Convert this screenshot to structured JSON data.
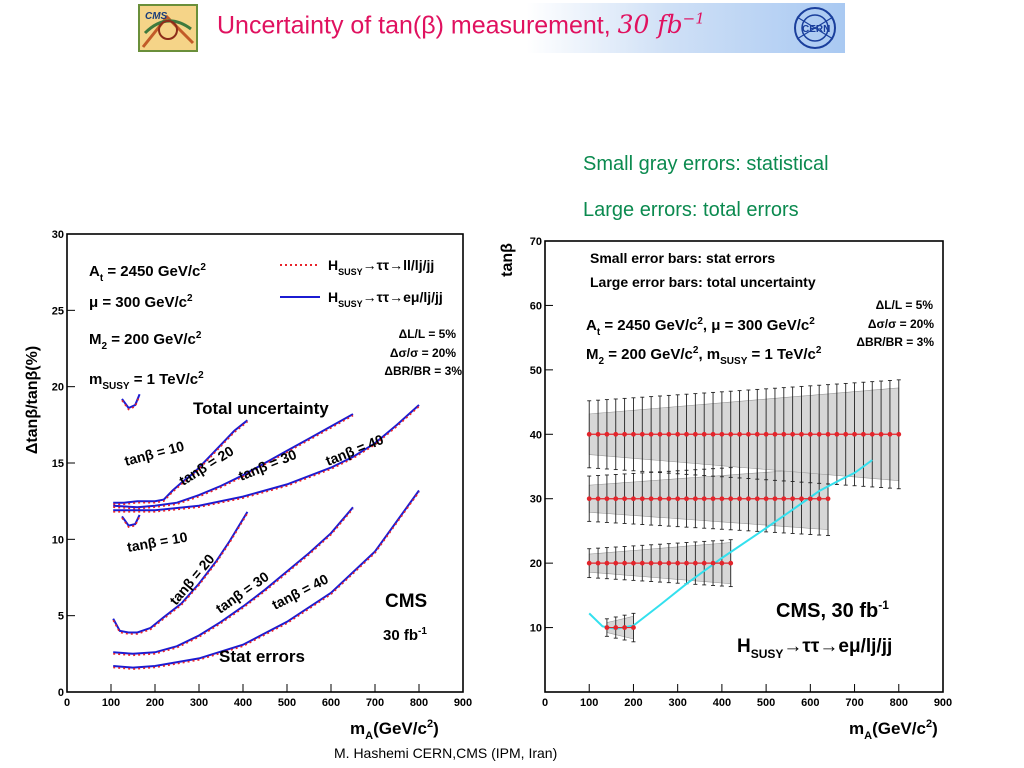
{
  "header": {
    "title_text": "Uncertainty of tan(β) measurement, ",
    "title_lumi": "30 fb",
    "title_lumi_exp": "−1",
    "left_logo_text": "CMS",
    "right_logo_text": "CERN"
  },
  "notes": {
    "line1": "Small gray errors: statistical",
    "line2": "Large errors: total errors"
  },
  "footer": "M. Hashemi CERN,CMS (IPM, Iran)",
  "colors": {
    "title": "#e0115f",
    "notes": "#0b8a4f",
    "curve_red": "#e8232b",
    "curve_blue": "#1b1bd2",
    "curve_cyan": "#33e0ee",
    "points": "#e3242b",
    "band": "#d7d7d7"
  },
  "chart_data": [
    {
      "type": "line",
      "xlabel_main": "m",
      "xlabel_sub": "A",
      "xlabel_unit": "(GeV/c",
      "xlabel_sup": "2",
      "xlabel_end": ")",
      "ylabel": "Δtanβ/tanβ(%)",
      "xlim": [
        0,
        900
      ],
      "ylim": [
        0,
        30
      ],
      "xticks": [
        0,
        100,
        200,
        300,
        400,
        500,
        600,
        700,
        800,
        900
      ],
      "yticks": [
        0,
        5,
        10,
        15,
        20,
        25,
        30
      ],
      "params": [
        "A_t = 2450 GeV/c²",
        "μ = 300 GeV/c²",
        "M₂ = 200 GeV/c²",
        "m_SUSY = 1 TeV/c²"
      ],
      "uncertainties": [
        "ΔL/L = 5%",
        "Δσ/σ = 20%",
        "ΔBR/BR = 3%"
      ],
      "legend": [
        {
          "label": "H_SUSY→ττ→ll/lj/jj",
          "style": "dotted",
          "color": "red"
        },
        {
          "label": "H_SUSY→ττ→eμ/lj/jj",
          "style": "solid",
          "color": "blue"
        }
      ],
      "group_labels": {
        "total": "Total uncertainty",
        "stat": "Stat errors"
      },
      "experiment": "CMS",
      "lumi": "30 fb",
      "lumi_exp": "-1",
      "series": [
        {
          "group": "total",
          "label": "tanβ = 10",
          "x": [
            125,
            140,
            155,
            165
          ],
          "y": [
            19.2,
            18.6,
            18.8,
            19.5
          ]
        },
        {
          "group": "total",
          "label": "tanβ = 20",
          "x": [
            105,
            130,
            160,
            200,
            220,
            240,
            260,
            290,
            320,
            350,
            380,
            410
          ],
          "y": [
            12.4,
            12.4,
            12.5,
            12.5,
            12.6,
            13.2,
            13.7,
            14.4,
            15.3,
            16.2,
            17.1,
            17.8
          ]
        },
        {
          "group": "total",
          "label": "tanβ = 30",
          "x": [
            105,
            160,
            200,
            250,
            300,
            350,
            400,
            450,
            500,
            550,
            600,
            650
          ],
          "y": [
            12.2,
            12.1,
            12.2,
            12.4,
            12.9,
            13.5,
            14.2,
            15,
            15.8,
            16.6,
            17.4,
            18.2
          ]
        },
        {
          "group": "total",
          "label": "tanβ = 40",
          "x": [
            105,
            200,
            300,
            400,
            500,
            600,
            650,
            700,
            750,
            800
          ],
          "y": [
            11.9,
            11.9,
            12.2,
            12.8,
            13.6,
            14.7,
            15.4,
            16.3,
            17.5,
            18.8
          ]
        },
        {
          "group": "stat",
          "label": "tanβ = 10",
          "x": [
            125,
            140,
            155,
            165
          ],
          "y": [
            11.5,
            10.9,
            11,
            11.6
          ]
        },
        {
          "group": "stat",
          "label": "tanβ = 20",
          "x": [
            105,
            120,
            140,
            160,
            190,
            220,
            260,
            300,
            340,
            370,
            410
          ],
          "y": [
            4.8,
            4.0,
            3.9,
            3.9,
            4.2,
            4.9,
            5.8,
            7.1,
            8.6,
            9.9,
            11.8
          ]
        },
        {
          "group": "stat",
          "label": "tanβ = 30",
          "x": [
            105,
            150,
            200,
            250,
            300,
            350,
            400,
            450,
            500,
            550,
            600,
            650
          ],
          "y": [
            2.6,
            2.5,
            2.6,
            3.0,
            3.7,
            4.6,
            5.6,
            6.7,
            7.9,
            9.1,
            10.4,
            12.1
          ]
        },
        {
          "group": "stat",
          "label": "tanβ = 40",
          "x": [
            105,
            150,
            200,
            300,
            400,
            500,
            600,
            700,
            800
          ],
          "y": [
            1.7,
            1.6,
            1.7,
            2.2,
            3.1,
            4.6,
            6.5,
            9.2,
            13.2
          ]
        }
      ]
    },
    {
      "type": "scatter",
      "xlabel_main": "m",
      "xlabel_sub": "A",
      "xlabel_unit": "(GeV/c",
      "xlabel_sup": "2",
      "xlabel_end": ")",
      "ylabel": "tanβ",
      "xlim": [
        0,
        900
      ],
      "ylim": [
        0,
        70
      ],
      "xticks": [
        0,
        100,
        200,
        300,
        400,
        500,
        600,
        700,
        800,
        900
      ],
      "yticks": [
        10,
        20,
        30,
        40,
        50,
        60,
        70
      ],
      "notes": [
        "Small error bars: stat errors",
        "Large error bars: total uncertainty"
      ],
      "params": [
        "A_t = 2450 GeV/c², μ = 300 GeV/c²",
        "M₂ = 200 GeV/c², m_SUSY = 1 TeV/c²"
      ],
      "uncertainties": [
        "ΔL/L = 5%",
        "Δσ/σ = 20%",
        "ΔBR/BR = 3%"
      ],
      "experiment": "CMS, 30 fb",
      "lumi_exp": "-1",
      "channel": "H_SUSY→ττ→eμ/lj/jj",
      "series": [
        {
          "tanb": 10,
          "x_start": 140,
          "x_end": 200,
          "stat_err": 1.1,
          "total_err": 1.7
        },
        {
          "tanb": 20,
          "x_start": 100,
          "x_end": 420,
          "stat_err": 2.0,
          "total_err": 2.8
        },
        {
          "tanb": 30,
          "x_start": 100,
          "x_end": 640,
          "stat_err": 3.0,
          "total_err": 4.4
        },
        {
          "tanb": 40,
          "x_start": 100,
          "x_end": 800,
          "stat_err": 4.5,
          "total_err": 6.5
        }
      ],
      "boundary": {
        "x": [
          100,
          130,
          160,
          200,
          260,
          320,
          400,
          480,
          560,
          620,
          670,
          700,
          740
        ],
        "y": [
          12.2,
          10.2,
          9.8,
          10.3,
          13.5,
          16.8,
          20.8,
          24.5,
          28.3,
          31.2,
          33.0,
          34.0,
          36.0
        ]
      }
    }
  ]
}
